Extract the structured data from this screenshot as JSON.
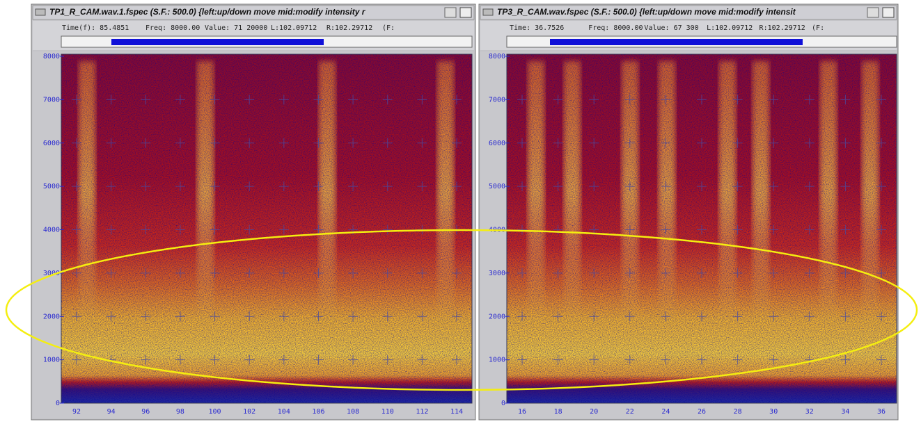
{
  "windows": [
    {
      "title": "TP1_R_CAM.wav.1.fspec (S.F.: 500.0) {left:up/down move  mid:modify intensity r",
      "info": [
        "Time(f): 85.4851",
        "Freq: 8000.00",
        "Value: 71 20000",
        "L:102.09712",
        "R:102.29712",
        "(F:"
      ],
      "yticks": [
        "8000",
        "7000",
        "6000",
        "5000",
        "4000",
        "3000",
        "2000",
        "1000",
        "0"
      ],
      "xticks": [
        "92",
        "94",
        "96",
        "98",
        "100",
        "102",
        "104",
        "106",
        "108",
        "110",
        "112",
        "114"
      ]
    },
    {
      "title": "TP3_R_CAM.wav.fspec (S.F.: 500.0) {left:up/down move  mid:modify intensit",
      "info": [
        "Time: 36.7526",
        "Freq: 8000.00",
        "Value: 67 300",
        "L:102.09712",
        "R:102.29712",
        "(F:"
      ],
      "yticks": [
        "8000",
        "7000",
        "6000",
        "5000",
        "4000",
        "3000",
        "2000",
        "1000",
        "0"
      ],
      "xticks": [
        "16",
        "18",
        "20",
        "22",
        "24",
        "26",
        "28",
        "30",
        "32",
        "34",
        "36"
      ]
    }
  ]
}
